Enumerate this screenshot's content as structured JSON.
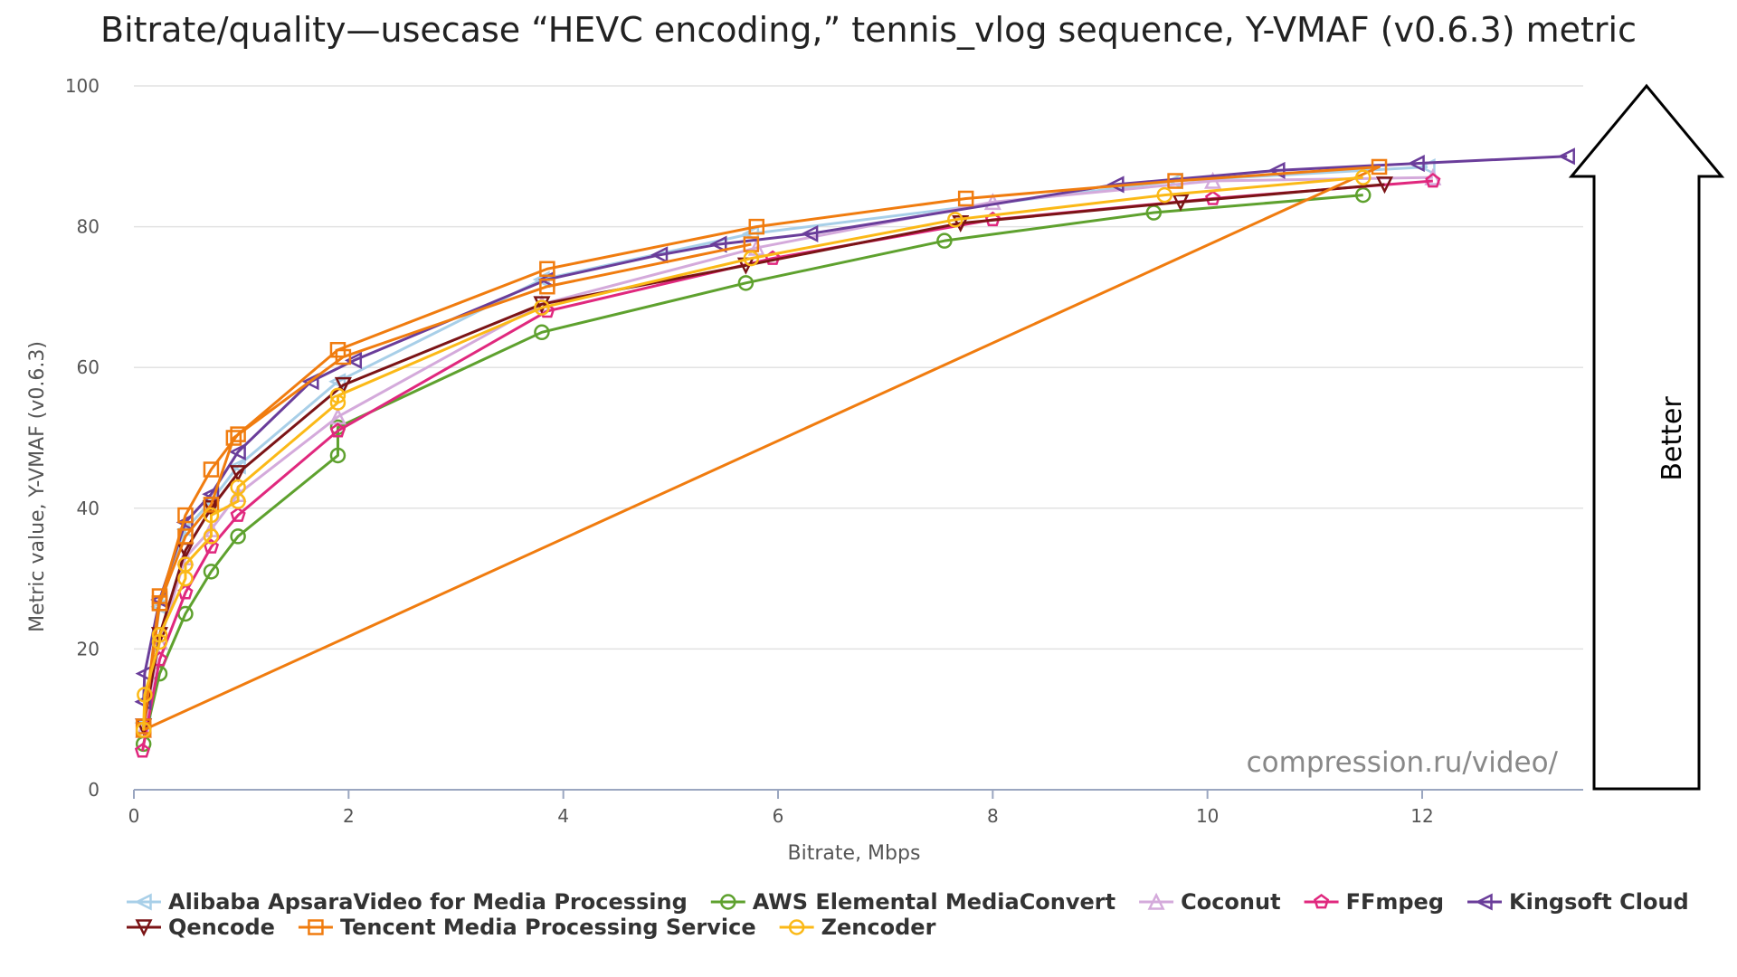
{
  "chart_data": {
    "type": "line",
    "title": "Bitrate/quality—usecase “HEVC encoding,” tennis_vlog sequence, Y-VMAF (v0.6.3) metric",
    "xlabel": "Bitrate, Mbps",
    "ylabel": "Metric value, Y-VMAF (v0.6.3)",
    "xlim": [
      0,
      13.5
    ],
    "ylim": [
      0,
      100
    ],
    "xticks": [
      0,
      2,
      4,
      6,
      8,
      10,
      12
    ],
    "yticks": [
      0,
      20,
      40,
      60,
      80,
      100
    ],
    "grid": "horizontal",
    "legend_position": "bottom",
    "watermark": "compression.ru/video/",
    "annotation": "Better",
    "series": [
      {
        "name": "Alibaba ApsaraVideo for Media Processing",
        "color": "#a8cfe8",
        "marker": "triangle-left",
        "x": [
          0.09,
          0.24,
          0.48,
          0.72,
          0.97,
          1.9,
          3.8,
          5.75,
          9.7,
          12.05
        ],
        "y": [
          9.5,
          26,
          37,
          41,
          46,
          58,
          72.5,
          79,
          86.5,
          88.5
        ]
      },
      {
        "name": "AWS Elemental MediaConvert",
        "color": "#5ea12e",
        "marker": "circle",
        "x": [
          0.09,
          0.24,
          0.48,
          0.72,
          0.97,
          1.9,
          1.9,
          3.8,
          5.7,
          7.55,
          9.5,
          11.45
        ],
        "y": [
          6.5,
          16.5,
          25,
          31,
          36,
          47.5,
          51.5,
          65,
          72,
          78,
          82,
          84.5
        ]
      },
      {
        "name": "Coconut",
        "color": "#d4aadb",
        "marker": "triangle-up",
        "x": [
          0.09,
          0.24,
          0.48,
          0.72,
          0.97,
          1.9,
          3.8,
          5.8,
          8.0,
          10.05,
          12.1
        ],
        "y": [
          8.5,
          21,
          33,
          37,
          42,
          53,
          69,
          77,
          83.5,
          86.5,
          87
        ]
      },
      {
        "name": "FFmpeg",
        "color": "#e0287e",
        "marker": "pentagon",
        "x": [
          0.08,
          0.24,
          0.48,
          0.72,
          0.97,
          1.9,
          3.85,
          5.95,
          8.0,
          10.05,
          12.1
        ],
        "y": [
          5.5,
          18.5,
          28,
          34.5,
          39,
          51,
          68,
          75.5,
          81,
          84,
          86.5
        ]
      },
      {
        "name": "Kingsoft Cloud",
        "color": "#6a3d9a",
        "marker": "triangle-left",
        "x": [
          0.09,
          0.1,
          0.24,
          0.48,
          0.72,
          0.97,
          1.65,
          2.05,
          3.85,
          4.9,
          5.45,
          6.3,
          9.15,
          10.65,
          11.95,
          13.35
        ],
        "y": [
          12.5,
          16.5,
          27,
          38,
          42,
          48,
          58,
          61,
          72.5,
          76,
          77.5,
          79,
          86,
          88,
          89,
          90
        ]
      },
      {
        "name": "Qencode",
        "color": "#7b1416",
        "marker": "triangle-down",
        "x": [
          0.09,
          0.24,
          0.48,
          0.72,
          0.97,
          1.95,
          3.8,
          5.7,
          7.7,
          9.75,
          11.65
        ],
        "y": [
          9,
          22,
          34,
          40,
          45,
          57.5,
          69,
          74.5,
          80.5,
          83.5,
          86
        ]
      },
      {
        "name": "Tencent Media Processing Service",
        "color": "#f07c0f",
        "marker": "square",
        "x": [
          0.09,
          0.24,
          0.24,
          0.48,
          0.72,
          0.97,
          1.9,
          3.85,
          5.8,
          7.75,
          9.7,
          11.6,
          0.09,
          0.24,
          0.48,
          0.72,
          0.93,
          1.95,
          3.85,
          5.75
        ],
        "y": [
          9,
          27.5,
          26.5,
          39,
          45.5,
          50.5,
          62.5,
          74,
          80,
          84,
          86.5,
          88.5,
          8.5,
          26.5,
          36,
          40.5,
          50,
          61.5,
          71.5,
          77.5
        ]
      },
      {
        "name": "Zencoder",
        "color": "#fbb917",
        "marker": "circle",
        "x": [
          0.09,
          0.1,
          0.24,
          0.24,
          0.48,
          0.48,
          0.72,
          0.72,
          0.97,
          0.97,
          1.9,
          1.9,
          3.8,
          5.75,
          7.65,
          9.6,
          11.45
        ],
        "y": [
          8.5,
          13.5,
          21,
          22,
          30,
          32,
          36,
          39,
          41,
          43,
          55,
          56,
          68.5,
          75.5,
          81,
          84.5,
          87
        ]
      }
    ]
  }
}
